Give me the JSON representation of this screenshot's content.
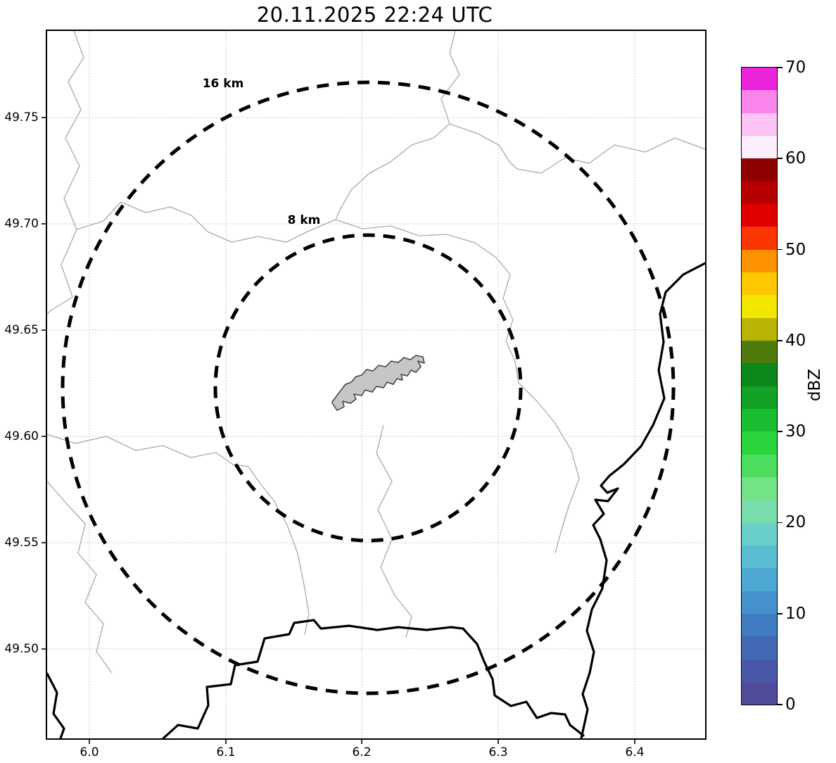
{
  "title": "20.11.2025 22:24 UTC",
  "axes": {
    "x_ticks": [
      "6.0",
      "6.1",
      "6.2",
      "6.3",
      "6.4"
    ],
    "y_ticks": [
      "49.75",
      "49.70",
      "49.65",
      "49.60",
      "49.55",
      "49.50"
    ]
  },
  "rings": [
    {
      "label": "16 km"
    },
    {
      "label": "8 km"
    }
  ],
  "map_colors": {
    "admin_boundary": "#a9a9a9",
    "country_border": "#000000",
    "range_ring": "#000000",
    "city_fill": "#c6c6c6",
    "grid": "#bbbbbb"
  },
  "colorbar": {
    "label": "dBZ",
    "range_min": 0,
    "range_max": 70,
    "ticks_top_to_bottom": [
      "70",
      "60",
      "50",
      "40",
      "30",
      "20",
      "10",
      "0"
    ],
    "colors_bottom_to_top": [
      "#4f4c99",
      "#4a59a7",
      "#4469b4",
      "#407cc1",
      "#4491cb",
      "#4da7d2",
      "#5abdd3",
      "#69cfc8",
      "#7bdcab",
      "#74e287",
      "#4cdc5e",
      "#29d43d",
      "#19bf30",
      "#12a326",
      "#0c871c",
      "#4f7a0c",
      "#b7b403",
      "#f2e600",
      "#fdc800",
      "#fe9100",
      "#f93600",
      "#e10000",
      "#b80000",
      "#8f0000",
      "#fdeefb",
      "#fcc3f4",
      "#f985ea",
      "#ec25dc"
    ]
  }
}
